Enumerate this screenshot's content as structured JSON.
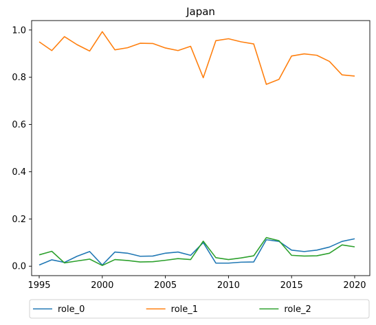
{
  "chart_data": {
    "type": "line",
    "title": "Japan",
    "xlabel": "",
    "ylabel": "",
    "xlim": [
      1994.4,
      2021.2
    ],
    "ylim": [
      -0.04,
      1.04
    ],
    "x_ticks": [
      1995,
      2000,
      2005,
      2010,
      2015,
      2020
    ],
    "y_ticks": [
      0.0,
      0.2,
      0.4,
      0.6,
      0.8,
      1.0
    ],
    "x_tick_labels": [
      "1995",
      "2000",
      "2005",
      "2010",
      "2015",
      "2020"
    ],
    "y_tick_labels": [
      "0.0",
      "0.2",
      "0.4",
      "0.6",
      "0.8",
      "1.0"
    ],
    "grid": false,
    "legend_position": "bottom, below plot area",
    "x": [
      1995,
      1996,
      1997,
      1998,
      1999,
      2000,
      2001,
      2002,
      2003,
      2004,
      2005,
      2006,
      2007,
      2008,
      2009,
      2010,
      2011,
      2012,
      2013,
      2014,
      2015,
      2016,
      2017,
      2018,
      2019,
      2020
    ],
    "series": [
      {
        "name": "role_0",
        "color": "#1f77b4",
        "values": [
          0.005,
          0.027,
          0.016,
          0.042,
          0.062,
          0.005,
          0.06,
          0.055,
          0.042,
          0.043,
          0.055,
          0.06,
          0.046,
          0.1,
          0.013,
          0.013,
          0.017,
          0.018,
          0.112,
          0.105,
          0.068,
          0.062,
          0.068,
          0.081,
          0.105,
          0.116
        ]
      },
      {
        "name": "role_1",
        "color": "#ff7f0e",
        "values": [
          0.95,
          0.913,
          0.972,
          0.938,
          0.911,
          0.993,
          0.916,
          0.925,
          0.944,
          0.943,
          0.924,
          0.913,
          0.931,
          0.798,
          0.955,
          0.963,
          0.95,
          0.941,
          0.77,
          0.791,
          0.89,
          0.899,
          0.893,
          0.867,
          0.81,
          0.805
        ]
      },
      {
        "name": "role_2",
        "color": "#2ca02c",
        "values": [
          0.048,
          0.063,
          0.014,
          0.022,
          0.03,
          0.003,
          0.028,
          0.024,
          0.018,
          0.019,
          0.025,
          0.032,
          0.028,
          0.106,
          0.036,
          0.028,
          0.035,
          0.044,
          0.121,
          0.108,
          0.046,
          0.043,
          0.044,
          0.055,
          0.09,
          0.082
        ]
      }
    ]
  }
}
